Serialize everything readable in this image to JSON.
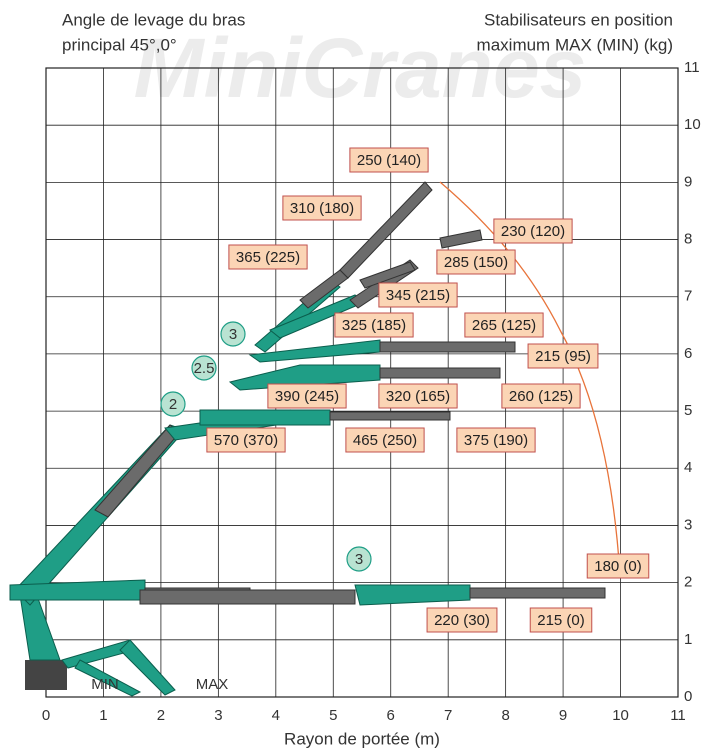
{
  "header": {
    "left": [
      "Angle de levage du bras",
      "principal 45°,0°"
    ],
    "right": [
      "Stabilisateurs en position",
      "maximum MAX (MIN) (kg)"
    ],
    "watermark": "MiniCranes"
  },
  "axes": {
    "x_label": "Rayon de portée (m)",
    "x_ticks": [
      0,
      1,
      2,
      3,
      4,
      5,
      6,
      7,
      8,
      9,
      10,
      11
    ],
    "y_ticks": [
      0,
      1,
      2,
      3,
      4,
      5,
      6,
      7,
      8,
      9,
      10,
      11
    ]
  },
  "loads": [
    "250 (140)",
    "310 (180)",
    "230 (120)",
    "365 (225)",
    "285 (150)",
    "345 (215)",
    "325 (185)",
    "265 (125)",
    "215 (95)",
    "390 (245)",
    "320 (165)",
    "260 (125)",
    "570 (370)",
    "465 (250)",
    "375 (190)",
    "180 (0)",
    "220 (30)",
    "215 (0)"
  ],
  "boom_angles": [
    "3",
    "2.5",
    "2",
    "3"
  ],
  "outrigger_labels": [
    "MIN",
    "MAX"
  ]
}
